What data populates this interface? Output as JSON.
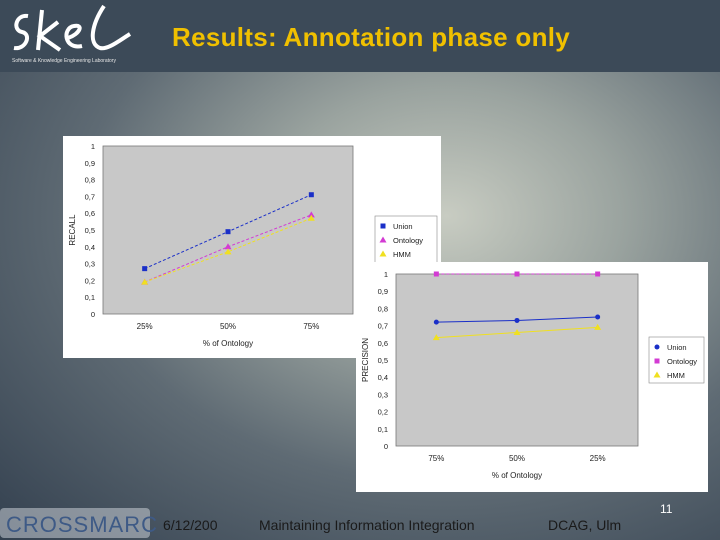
{
  "slide": {
    "title": "Results: Annotation phase only",
    "logo_text": "Software & Knowledge Engineering Laboratory",
    "footer_date": "6/12/200",
    "footer_talk": "Maintaining Information Integration",
    "footer_venue": "DCAG, Ulm",
    "slide_number": "11",
    "crossmarc_label": "CROSSMARC"
  },
  "colors": {
    "title": "#f0c000",
    "union": "#1a2fc8",
    "ontology": "#d33bd3",
    "hmm": "#f0e020"
  },
  "chart_data": [
    {
      "type": "line",
      "ylabel": "RECALL",
      "xlabel": "% of Ontology",
      "categories": [
        "25%",
        "50%",
        "75%"
      ],
      "ylim": [
        0,
        1
      ],
      "yticks": [
        "0",
        "0,1",
        "0,2",
        "0,3",
        "0,4",
        "0,5",
        "0,6",
        "0,7",
        "0,8",
        "0,9",
        "1"
      ],
      "legend": "right",
      "grid": false,
      "series": [
        {
          "name": "Union",
          "values": [
            0.27,
            0.49,
            0.71
          ]
        },
        {
          "name": "Ontology",
          "values": [
            0.19,
            0.4,
            0.59
          ]
        },
        {
          "name": "HMM",
          "values": [
            0.19,
            0.37,
            0.57
          ]
        }
      ]
    },
    {
      "type": "line",
      "ylabel": "PRECISION",
      "xlabel": "% of Ontology",
      "categories": [
        "75%",
        "50%",
        "25%"
      ],
      "ylim": [
        0,
        1
      ],
      "yticks": [
        "0",
        "0,1",
        "0,2",
        "0,3",
        "0,4",
        "0,5",
        "0,6",
        "0,7",
        "0,8",
        "0,9",
        "1"
      ],
      "legend": "right",
      "grid": false,
      "series": [
        {
          "name": "Union",
          "values": [
            0.72,
            0.73,
            0.75
          ]
        },
        {
          "name": "Ontology",
          "values": [
            1.0,
            1.0,
            1.0
          ]
        },
        {
          "name": "HMM",
          "values": [
            0.63,
            0.66,
            0.69
          ]
        }
      ]
    }
  ]
}
